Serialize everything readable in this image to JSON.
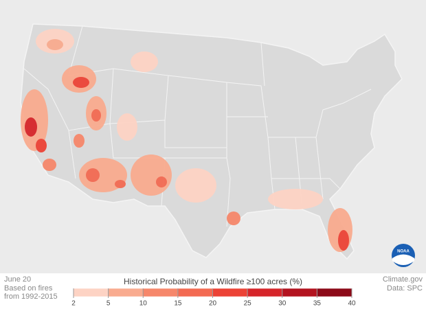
{
  "caption": {
    "date": "June 20",
    "note_line1": "Based on fires",
    "note_line2": "from 1992-2015"
  },
  "credits": {
    "source": "Climate.gov",
    "data": "Data: SPC",
    "logo": "NOAA"
  },
  "legend": {
    "title": "Historical Probability of a Wildfire ≥100 acres (%)",
    "breaks": [
      2,
      5,
      10,
      15,
      20,
      25,
      30,
      35,
      40
    ],
    "colors": [
      "#fdd3c4",
      "#f9ab8f",
      "#f6876b",
      "#f36a52",
      "#ec4336",
      "#d6252a",
      "#b3131f",
      "#8c0a18",
      "#5e0612"
    ]
  }
}
